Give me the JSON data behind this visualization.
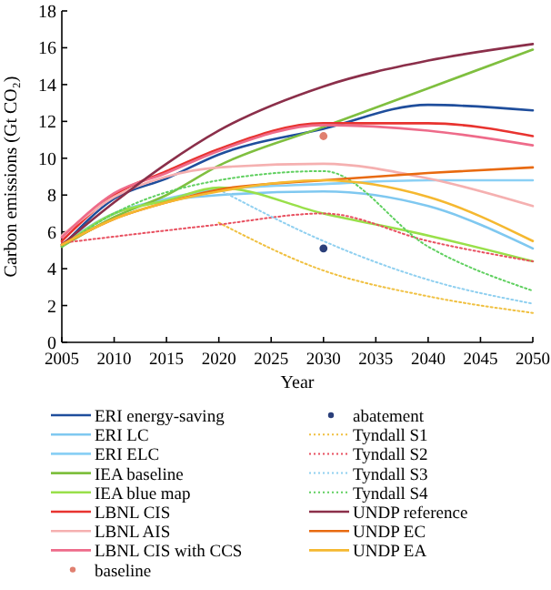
{
  "chart_data": {
    "type": "line",
    "xlabel": "Year",
    "ylabel": "Carbon emissions (Gt CO₂)",
    "xlim": [
      2005,
      2050
    ],
    "ylim": [
      0,
      18
    ],
    "xticks": [
      2005,
      2010,
      2015,
      2020,
      2025,
      2030,
      2035,
      2040,
      2045,
      2050
    ],
    "yticks": [
      0,
      2,
      4,
      6,
      8,
      10,
      12,
      14,
      16,
      18
    ],
    "legend": "bottom",
    "grid": false,
    "x": [
      2005,
      2010,
      2015,
      2020,
      2030,
      2040,
      2050
    ],
    "series": [
      {
        "name": "ERI energy-saving",
        "color": "#1f4e9c",
        "values": [
          5.2,
          7.8,
          8.9,
          10.2,
          11.6,
          12.9,
          12.6
        ]
      },
      {
        "name": "ERI LC",
        "color": "#7fc8f0",
        "values": [
          5.3,
          7.0,
          7.7,
          8.0,
          8.2,
          7.4,
          5.1
        ]
      },
      {
        "name": "ERI ELC",
        "color": "#8ad0f5",
        "values": [
          5.3,
          7.0,
          7.8,
          8.3,
          8.6,
          8.8,
          8.8
        ]
      },
      {
        "name": "IEA baseline",
        "color": "#7fbf3f",
        "values": [
          5.2,
          6.8,
          8.0,
          9.6,
          11.7,
          13.8,
          15.9
        ]
      },
      {
        "name": "IEA blue map",
        "color": "#99e04a",
        "values": [
          5.2,
          7.0,
          7.7,
          8.4,
          7.0,
          5.8,
          4.4
        ]
      },
      {
        "name": "LBNL CIS",
        "color": "#e8332f",
        "values": [
          5.5,
          8.0,
          9.3,
          10.5,
          11.9,
          11.9,
          11.2
        ]
      },
      {
        "name": "LBNL AIS",
        "color": "#f5b0b0",
        "values": [
          5.8,
          7.9,
          9.0,
          9.5,
          9.7,
          8.9,
          7.4
        ]
      },
      {
        "name": "LBNL CIS with CCS",
        "color": "#ee6b8a",
        "values": [
          5.7,
          8.1,
          9.2,
          10.4,
          11.8,
          11.5,
          10.7
        ]
      },
      {
        "name": "baseline",
        "type": "scatter",
        "marker": "circle",
        "color": "#e08070",
        "x": [
          2030
        ],
        "values": [
          11.2
        ]
      },
      {
        "name": "abatement",
        "type": "scatter",
        "marker": "circle",
        "color": "#2a3f7a",
        "x": [
          2030
        ],
        "values": [
          5.1
        ]
      },
      {
        "name": "Tyndall S1",
        "color": "#f0c040",
        "line_style": "dotted",
        "x": [
          2020,
          2030,
          2040,
          2050
        ],
        "values": [
          6.5,
          3.9,
          2.5,
          1.6
        ]
      },
      {
        "name": "Tyndall S2",
        "color": "#e85060",
        "line_style": "dotted",
        "x": [
          2005,
          2020,
          2030,
          2040,
          2050
        ],
        "values": [
          5.4,
          6.4,
          7.0,
          5.5,
          4.4
        ]
      },
      {
        "name": "Tyndall S3",
        "color": "#90d0f0",
        "line_style": "dotted",
        "x": [
          2020,
          2030,
          2040,
          2050
        ],
        "values": [
          8.3,
          5.5,
          3.4,
          2.1
        ]
      },
      {
        "name": "Tyndall S4",
        "color": "#60d060",
        "line_style": "dotted",
        "x": [
          2005,
          2010,
          2020,
          2030,
          2040,
          2050
        ],
        "values": [
          5.2,
          7.0,
          8.8,
          9.3,
          5.2,
          2.8
        ]
      },
      {
        "name": "UNDP reference",
        "color": "#8b2f4a",
        "values": [
          5.3,
          7.6,
          9.7,
          11.5,
          13.9,
          15.3,
          16.2
        ]
      },
      {
        "name": "UNDP EC",
        "color": "#e86a10",
        "values": [
          5.3,
          6.7,
          7.6,
          8.3,
          8.8,
          9.2,
          9.5
        ]
      },
      {
        "name": "UNDP EA",
        "color": "#f5b830",
        "values": [
          5.3,
          6.7,
          7.6,
          8.2,
          8.8,
          7.9,
          5.5
        ]
      }
    ]
  }
}
